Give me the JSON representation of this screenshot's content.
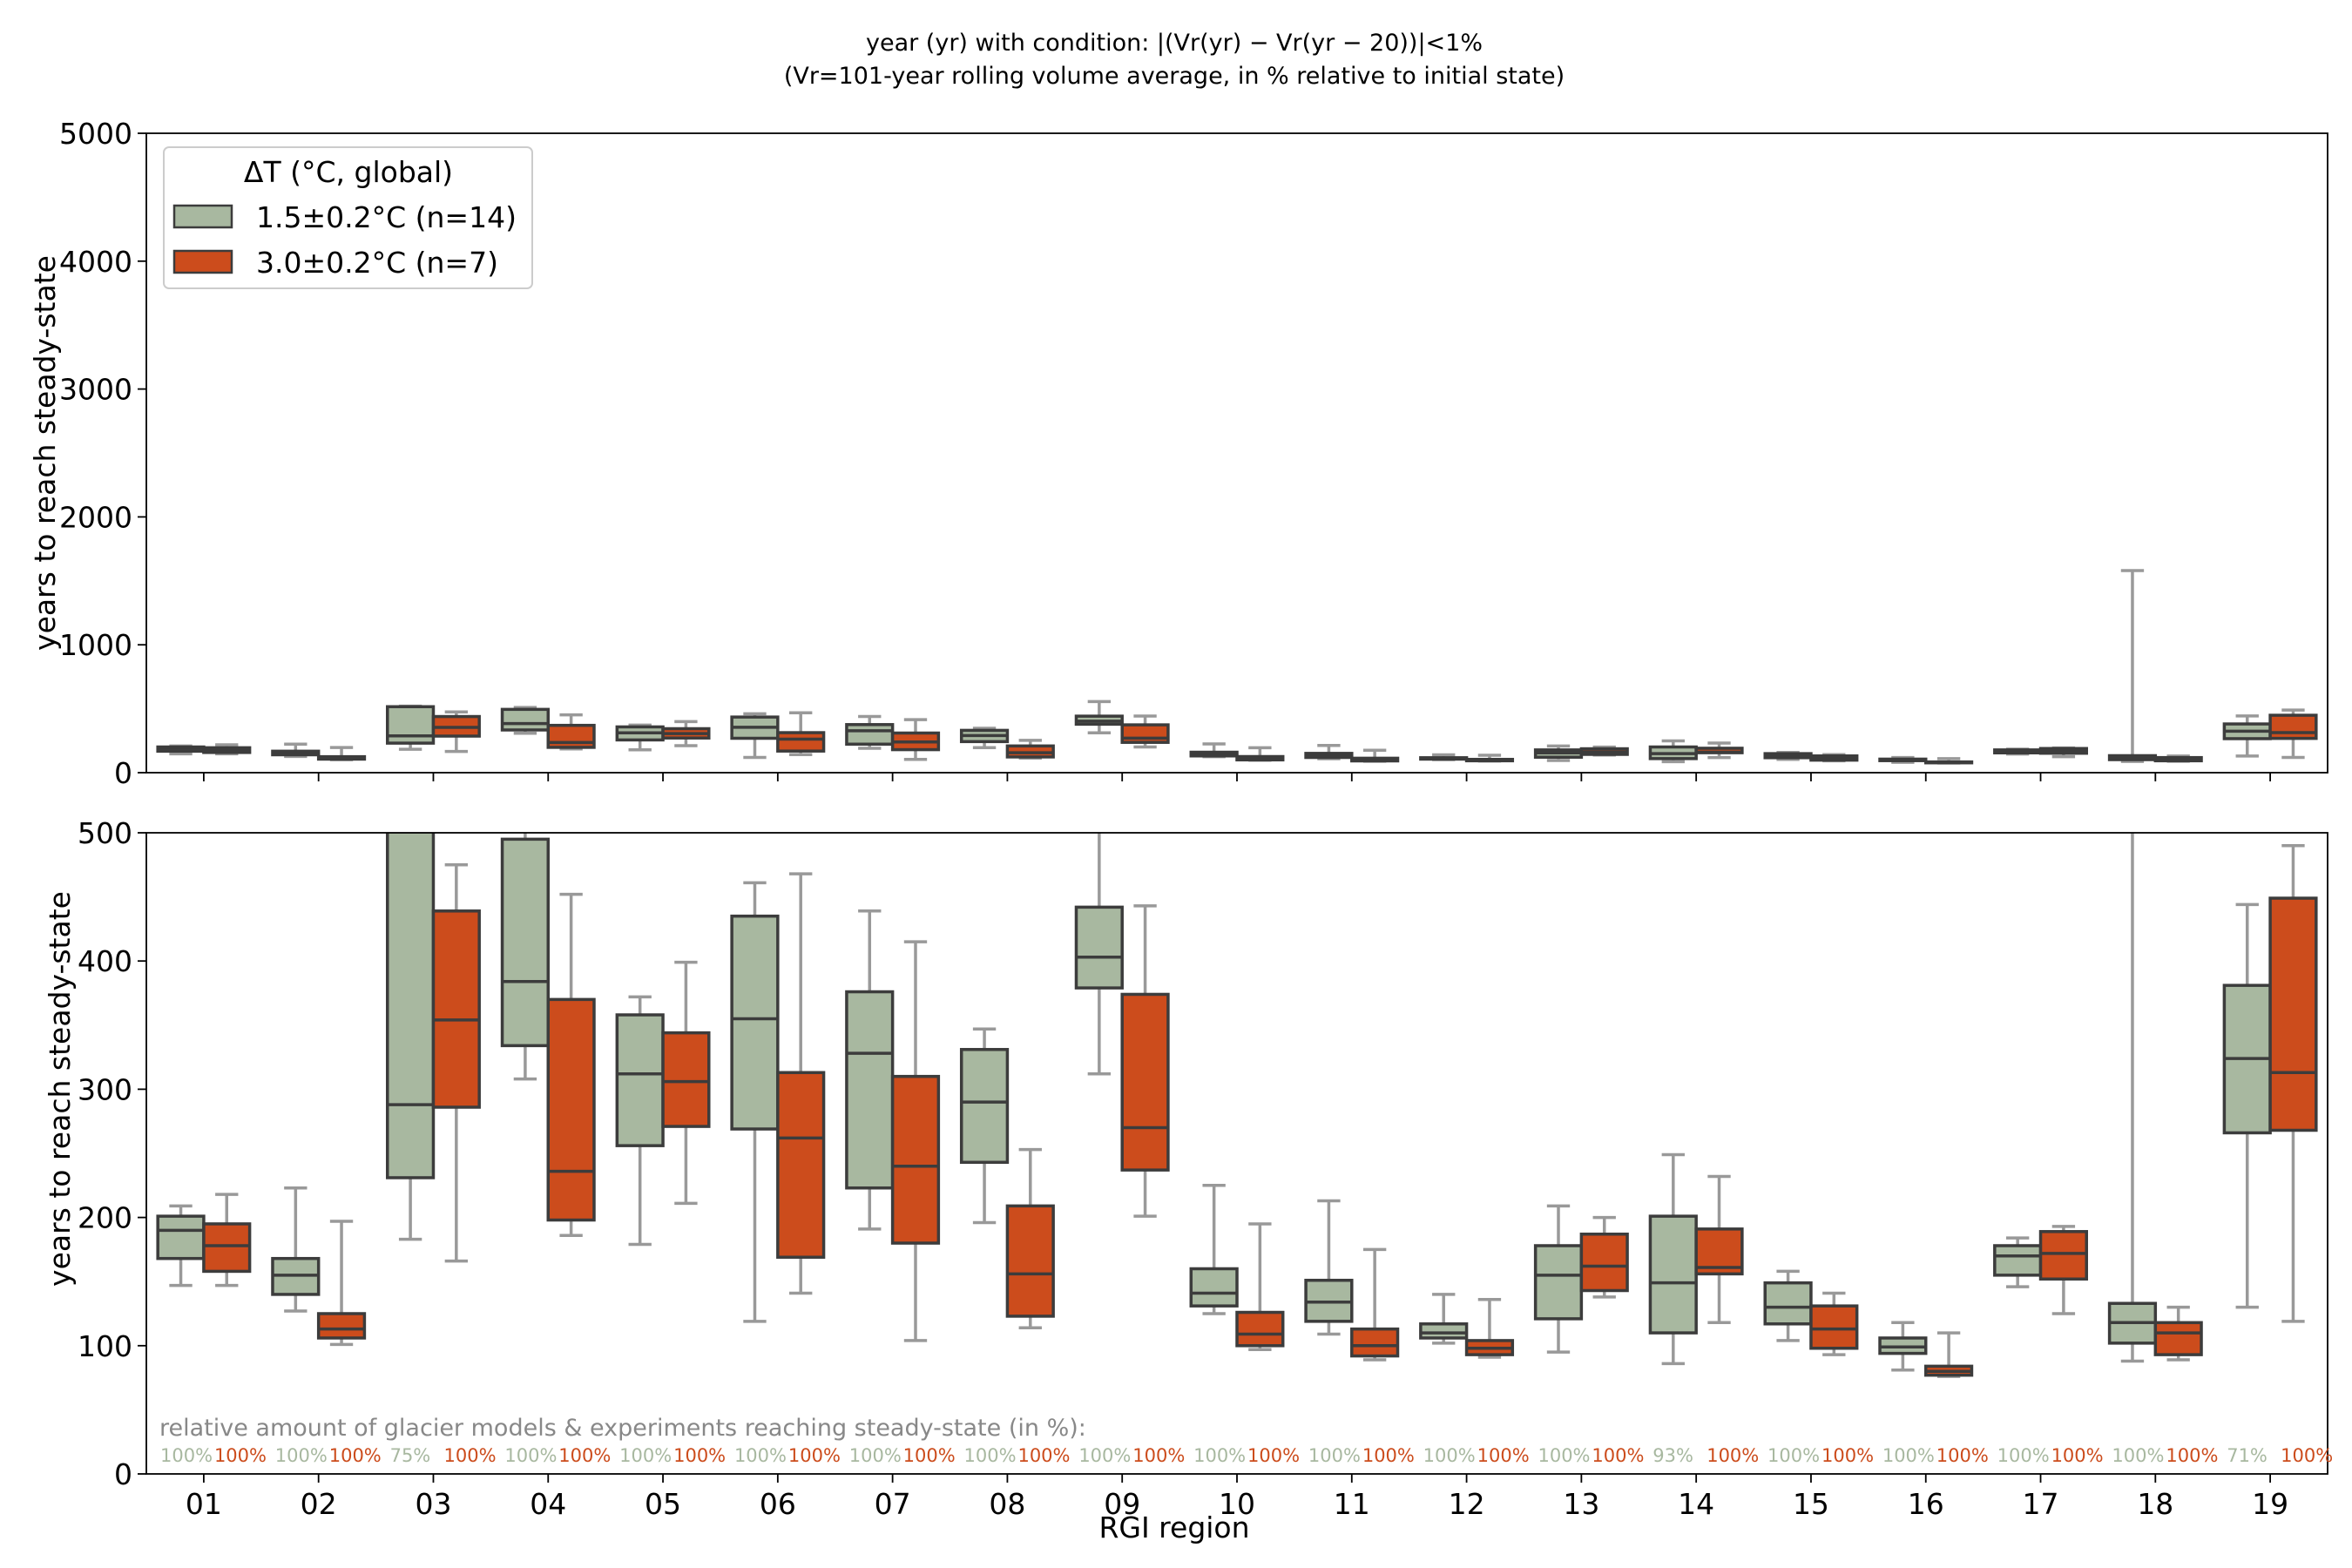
{
  "figure": {
    "title_line1": "year (yr) with condition:  |(Vr(yr) − Vr(yr − 20))|<1%",
    "title_line2": "(Vr=101-year rolling volume average, in % relative to initial state)",
    "ylabel": "years to reach steady-state",
    "xlabel": "RGI region",
    "annotation": "relative amount of glacier models & experiments reaching steady-state (in %):"
  },
  "legend": {
    "title": "ΔT (°C, global)",
    "entries": [
      "1.5±0.2°C (n=14)",
      "3.0±0.2°C (n=7)"
    ]
  },
  "colors": {
    "green": "#a8b8a0",
    "orange": "#cc4c1c",
    "box_edge": "#3c3c3c",
    "whisker": "#999999",
    "annot_gray": "#888888"
  },
  "chart_data": {
    "type": "box",
    "categories": [
      "01",
      "02",
      "03",
      "04",
      "05",
      "06",
      "07",
      "08",
      "09",
      "10",
      "11",
      "12",
      "13",
      "14",
      "15",
      "16",
      "17",
      "18",
      "19"
    ],
    "panels": [
      {
        "ylim": [
          0,
          5000
        ],
        "yticks": [
          "0",
          "1000",
          "2000",
          "3000",
          "4000",
          "5000"
        ],
        "ytick_values": [
          0,
          1000,
          2000,
          3000,
          4000,
          5000
        ]
      },
      {
        "ylim": [
          0,
          500
        ],
        "yticks": [
          "0",
          "100",
          "200",
          "300",
          "400",
          "500"
        ],
        "ytick_values": [
          0,
          100,
          200,
          300,
          400,
          500
        ]
      }
    ],
    "series": [
      {
        "name": "1.5±0.2°C (n=14)",
        "boxes": [
          {
            "min": 147,
            "q1": 168,
            "median": 190,
            "q3": 201,
            "max": 209
          },
          {
            "min": 127,
            "q1": 140,
            "median": 155,
            "q3": 168,
            "max": 223
          },
          {
            "min": 183,
            "q1": 231,
            "median": 288,
            "q3": 516,
            "max": 520
          },
          {
            "min": 308,
            "q1": 334,
            "median": 384,
            "q3": 495,
            "max": 510
          },
          {
            "min": 179,
            "q1": 256,
            "median": 312,
            "q3": 358,
            "max": 372
          },
          {
            "min": 119,
            "q1": 269,
            "median": 355,
            "q3": 435,
            "max": 461
          },
          {
            "min": 191,
            "q1": 223,
            "median": 328,
            "q3": 376,
            "max": 439
          },
          {
            "min": 196,
            "q1": 243,
            "median": 290,
            "q3": 331,
            "max": 347
          },
          {
            "min": 312,
            "q1": 379,
            "median": 403,
            "q3": 442,
            "max": 556
          },
          {
            "min": 125,
            "q1": 131,
            "median": 141,
            "q3": 160,
            "max": 225
          },
          {
            "min": 109,
            "q1": 119,
            "median": 134,
            "q3": 151,
            "max": 213
          },
          {
            "min": 102,
            "q1": 106,
            "median": 110,
            "q3": 117,
            "max": 140
          },
          {
            "min": 95,
            "q1": 121,
            "median": 155,
            "q3": 178,
            "max": 209
          },
          {
            "min": 86,
            "q1": 110,
            "median": 149,
            "q3": 201,
            "max": 249
          },
          {
            "min": 104,
            "q1": 117,
            "median": 130,
            "q3": 149,
            "max": 158
          },
          {
            "min": 81,
            "q1": 94,
            "median": 99,
            "q3": 106,
            "max": 118
          },
          {
            "min": 146,
            "q1": 155,
            "median": 170,
            "q3": 178,
            "max": 184
          },
          {
            "min": 88,
            "q1": 102,
            "median": 118,
            "q3": 133,
            "max": 1580
          },
          {
            "min": 130,
            "q1": 266,
            "median": 324,
            "q3": 381,
            "max": 444
          }
        ],
        "percent_reaching": [
          "100%",
          "100%",
          "75%",
          "100%",
          "100%",
          "100%",
          "100%",
          "100%",
          "100%",
          "100%",
          "100%",
          "100%",
          "100%",
          "93%",
          "100%",
          "100%",
          "100%",
          "100%",
          "71%"
        ]
      },
      {
        "name": "3.0±0.2°C (n=7)",
        "boxes": [
          {
            "min": 147,
            "q1": 158,
            "median": 178,
            "q3": 195,
            "max": 218
          },
          {
            "min": 101,
            "q1": 106,
            "median": 113,
            "q3": 125,
            "max": 197
          },
          {
            "min": 166,
            "q1": 286,
            "median": 354,
            "q3": 439,
            "max": 475
          },
          {
            "min": 186,
            "q1": 198,
            "median": 236,
            "q3": 370,
            "max": 452
          },
          {
            "min": 211,
            "q1": 271,
            "median": 306,
            "q3": 344,
            "max": 399
          },
          {
            "min": 141,
            "q1": 169,
            "median": 262,
            "q3": 313,
            "max": 468
          },
          {
            "min": 104,
            "q1": 180,
            "median": 240,
            "q3": 310,
            "max": 415
          },
          {
            "min": 114,
            "q1": 123,
            "median": 156,
            "q3": 209,
            "max": 253
          },
          {
            "min": 201,
            "q1": 237,
            "median": 270,
            "q3": 374,
            "max": 443
          },
          {
            "min": 97,
            "q1": 100,
            "median": 109,
            "q3": 126,
            "max": 195
          },
          {
            "min": 89,
            "q1": 92,
            "median": 100,
            "q3": 113,
            "max": 175
          },
          {
            "min": 91,
            "q1": 93,
            "median": 98,
            "q3": 104,
            "max": 136
          },
          {
            "min": 138,
            "q1": 143,
            "median": 162,
            "q3": 187,
            "max": 200
          },
          {
            "min": 118,
            "q1": 156,
            "median": 161,
            "q3": 191,
            "max": 232
          },
          {
            "min": 93,
            "q1": 98,
            "median": 113,
            "q3": 131,
            "max": 141
          },
          {
            "min": 76,
            "q1": 77,
            "median": 80,
            "q3": 84,
            "max": 110
          },
          {
            "min": 125,
            "q1": 152,
            "median": 172,
            "q3": 189,
            "max": 193
          },
          {
            "min": 89,
            "q1": 93,
            "median": 110,
            "q3": 118,
            "max": 130
          },
          {
            "min": 119,
            "q1": 268,
            "median": 313,
            "q3": 449,
            "max": 490
          }
        ],
        "percent_reaching": [
          "100%",
          "100%",
          "100%",
          "100%",
          "100%",
          "100%",
          "100%",
          "100%",
          "100%",
          "100%",
          "100%",
          "100%",
          "100%",
          "100%",
          "100%",
          "100%",
          "100%",
          "100%",
          "100%"
        ]
      }
    ]
  }
}
